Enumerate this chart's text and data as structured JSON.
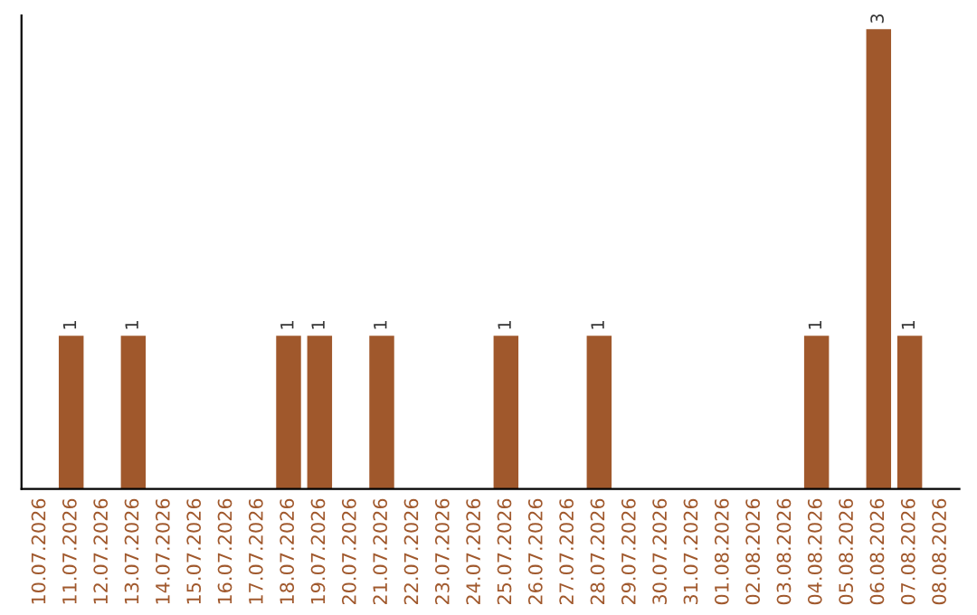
{
  "chart_data": {
    "type": "bar",
    "categories": [
      "10.07.2026",
      "11.07.2026",
      "12.07.2026",
      "13.07.2026",
      "14.07.2026",
      "15.07.2026",
      "16.07.2026",
      "17.07.2026",
      "18.07.2026",
      "19.07.2026",
      "20.07.2026",
      "21.07.2026",
      "22.07.2026",
      "23.07.2026",
      "24.07.2026",
      "25.07.2026",
      "26.07.2026",
      "27.07.2026",
      "28.07.2026",
      "29.07.2026",
      "30.07.2026",
      "31.07.2026",
      "01.08.2026",
      "02.08.2026",
      "03.08.2026",
      "04.08.2026",
      "05.08.2026",
      "06.08.2026",
      "07.08.2026",
      "08.08.2026"
    ],
    "values": [
      0,
      1,
      0,
      1,
      0,
      0,
      0,
      0,
      1,
      1,
      0,
      1,
      0,
      0,
      0,
      1,
      0,
      0,
      1,
      0,
      0,
      0,
      0,
      0,
      0,
      1,
      0,
      3,
      1,
      0
    ],
    "value_labels": [
      null,
      "1",
      null,
      "1",
      null,
      null,
      null,
      null,
      "1",
      "1",
      null,
      "1",
      null,
      null,
      null,
      "1",
      null,
      null,
      "1",
      null,
      null,
      null,
      null,
      null,
      null,
      "1",
      null,
      "3",
      "1",
      null
    ],
    "color": "#a0582c",
    "tick_labels": "x",
    "grid": false,
    "legend": false
  }
}
